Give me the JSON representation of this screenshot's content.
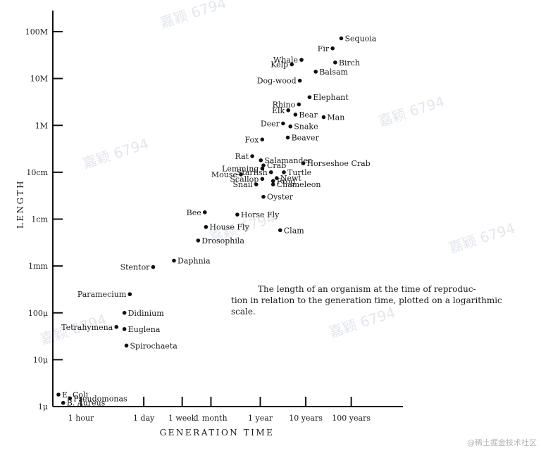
{
  "chart_data": {
    "type": "scatter",
    "title": "",
    "xlabel": "GENERATION TIME",
    "ylabel": "LENGTH",
    "x_scale": "log",
    "y_scale": "log",
    "x_unit": "days",
    "y_unit": "meters",
    "xlim": [
      0.01,
      500000
    ],
    "ylim": [
      1e-06,
      100
    ],
    "x_ticks": [
      {
        "label": "1 hour",
        "value": 0.0417
      },
      {
        "label": "1 day",
        "value": 1
      },
      {
        "label": "1 week",
        "value": 7
      },
      {
        "label": "1 month",
        "value": 30
      },
      {
        "label": "1 year",
        "value": 365
      },
      {
        "label": "10 years",
        "value": 3650
      },
      {
        "label": "100 years",
        "value": 36500
      }
    ],
    "y_ticks": [
      {
        "label": "1μ",
        "value": 1e-06
      },
      {
        "label": "10μ",
        "value": 1e-05
      },
      {
        "label": "100μ",
        "value": 0.0001
      },
      {
        "label": "1mm",
        "value": 0.001
      },
      {
        "label": "1cm",
        "value": 0.01
      },
      {
        "label": "10cm",
        "value": 0.1
      },
      {
        "label": "1M",
        "value": 1
      },
      {
        "label": "10M",
        "value": 10
      },
      {
        "label": "100M",
        "value": 100
      }
    ],
    "grid": false,
    "legend": "none",
    "caption": [
      "The length of an organism at the time of reproduc-",
      "tion in relation to the generation time, plotted on a logarithmic",
      "scale."
    ],
    "points": [
      {
        "label": "E. Coli",
        "x": 0.0133,
        "y": 1.8e-06,
        "anchor": "start"
      },
      {
        "label": "Pseudomonas",
        "x": 0.0238,
        "y": 1.5e-06,
        "anchor": "start"
      },
      {
        "label": "B. Aureus",
        "x": 0.0169,
        "y": 1.2e-06,
        "anchor": "start"
      },
      {
        "label": "Paramecium",
        "x": 0.493,
        "y": 0.00025,
        "anchor": "end"
      },
      {
        "label": "Didinium",
        "x": 0.375,
        "y": 0.0001,
        "anchor": "start"
      },
      {
        "label": "Tetrahymena",
        "x": 0.25,
        "y": 5e-05,
        "anchor": "end"
      },
      {
        "label": "Euglena",
        "x": 0.375,
        "y": 4.5e-05,
        "anchor": "start"
      },
      {
        "label": "Spirochaeta",
        "x": 0.416,
        "y": 2e-05,
        "anchor": "start"
      },
      {
        "label": "Stentor",
        "x": 1.61,
        "y": 0.00095,
        "anchor": "end"
      },
      {
        "label": "Daphnia",
        "x": 4.61,
        "y": 0.0013,
        "anchor": "start"
      },
      {
        "label": "Drosophila",
        "x": 15.7,
        "y": 0.0035,
        "anchor": "start"
      },
      {
        "label": "Bee",
        "x": 22,
        "y": 0.014,
        "anchor": "end"
      },
      {
        "label": "House Fly",
        "x": 23.3,
        "y": 0.0068,
        "anchor": "start"
      },
      {
        "label": "Horse Fly",
        "x": 114,
        "y": 0.0125,
        "anchor": "start"
      },
      {
        "label": "Clam",
        "x": 1000,
        "y": 0.0058,
        "anchor": "start"
      },
      {
        "label": "Oyster",
        "x": 428,
        "y": 0.03,
        "anchor": "start"
      },
      {
        "label": "Chameleon",
        "x": 698,
        "y": 0.055,
        "anchor": "start"
      },
      {
        "label": "Snail",
        "x": 297,
        "y": 0.055,
        "anchor": "end"
      },
      {
        "label": "Frog",
        "x": 698,
        "y": 0.065,
        "anchor": "start"
      },
      {
        "label": "Scallop",
        "x": 404,
        "y": 0.072,
        "anchor": "end"
      },
      {
        "label": "Newt",
        "x": 838,
        "y": 0.075,
        "anchor": "start"
      },
      {
        "label": "Mouse",
        "x": 137,
        "y": 0.09,
        "anchor": "end"
      },
      {
        "label": "Starfish",
        "x": 629,
        "y": 0.1,
        "anchor": "end"
      },
      {
        "label": "Turtle",
        "x": 1205,
        "y": 0.1,
        "anchor": "start"
      },
      {
        "label": "Lemming",
        "x": 404,
        "y": 0.12,
        "anchor": "end"
      },
      {
        "label": "Crab",
        "x": 428,
        "y": 0.14,
        "anchor": "start"
      },
      {
        "label": "Salamander",
        "x": 375,
        "y": 0.18,
        "anchor": "start"
      },
      {
        "label": "Horseshoe Crab",
        "x": 3210,
        "y": 0.155,
        "anchor": "start"
      },
      {
        "label": "Rat",
        "x": 243,
        "y": 0.22,
        "anchor": "end"
      },
      {
        "label": "Fox",
        "x": 403,
        "y": 0.5,
        "anchor": "end"
      },
      {
        "label": "Beaver",
        "x": 1470,
        "y": 0.55,
        "anchor": "start"
      },
      {
        "label": "Deer",
        "x": 1160,
        "y": 1.1,
        "anchor": "end"
      },
      {
        "label": "Snake",
        "x": 1675,
        "y": 0.95,
        "anchor": "start"
      },
      {
        "label": "Bear",
        "x": 2158,
        "y": 1.7,
        "anchor": "start"
      },
      {
        "label": "Man",
        "x": 9020,
        "y": 1.5,
        "anchor": "start"
      },
      {
        "label": "Elk",
        "x": 1502,
        "y": 2.1,
        "anchor": "end"
      },
      {
        "label": "Rhino",
        "x": 2574,
        "y": 2.8,
        "anchor": "end"
      },
      {
        "label": "Elephant",
        "x": 4420,
        "y": 4,
        "anchor": "start"
      },
      {
        "label": "Dog-wood",
        "x": 2700,
        "y": 9,
        "anchor": "end"
      },
      {
        "label": "Balsam",
        "x": 6040,
        "y": 14,
        "anchor": "start"
      },
      {
        "label": "Kelp",
        "x": 1800,
        "y": 20,
        "anchor": "end"
      },
      {
        "label": "Whale",
        "x": 2940,
        "y": 25,
        "anchor": "end"
      },
      {
        "label": "Birch",
        "x": 16180,
        "y": 22,
        "anchor": "start"
      },
      {
        "label": "Fir",
        "x": 14200,
        "y": 44,
        "anchor": "end"
      },
      {
        "label": "Sequoia",
        "x": 22060,
        "y": 72,
        "anchor": "start"
      }
    ]
  },
  "watermark": {
    "repeat_text": "嘉颖 6794",
    "corner_text": "@稀土掘金技术社区"
  }
}
